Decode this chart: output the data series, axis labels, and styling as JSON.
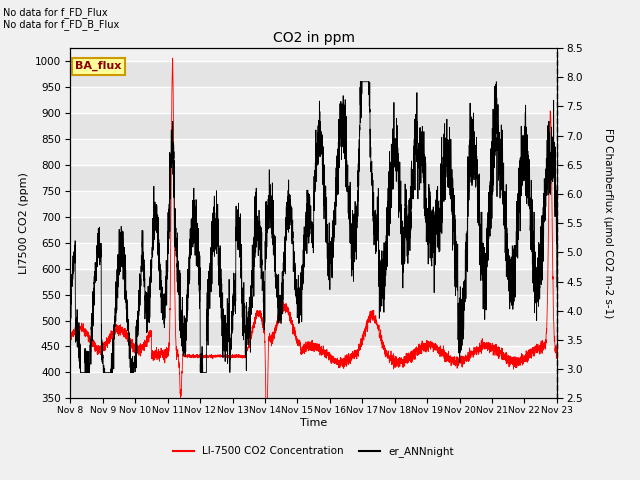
{
  "title": "CO2 in ppm",
  "xlabel": "Time",
  "ylabel_left": "LI7500 CO2 (ppm)",
  "ylabel_right": "FD Chamberflux (μmol CO2 m-2 s-1)",
  "text_no_data_1": "No data for f_FD_Flux",
  "text_no_data_2": "No data for f_FD_B_Flux",
  "ba_flux_label": "BA_flux",
  "legend_red": "LI-7500 CO2 Concentration",
  "legend_black": "er_ANNnight",
  "ylim_left": [
    350,
    1025
  ],
  "ylim_right": [
    2.5,
    8.5
  ],
  "yticks_left": [
    350,
    400,
    450,
    500,
    550,
    600,
    650,
    700,
    750,
    800,
    850,
    900,
    950,
    1000
  ],
  "yticks_right": [
    2.5,
    3.0,
    3.5,
    4.0,
    4.5,
    5.0,
    5.5,
    6.0,
    6.5,
    7.0,
    7.5,
    8.0,
    8.5
  ],
  "xtick_labels": [
    "Nov 8",
    "Nov 9",
    "Nov 10",
    "Nov 11",
    "Nov 12",
    "Nov 13",
    "Nov 14",
    "Nov 15",
    "Nov 16",
    "Nov 17",
    "Nov 18",
    "Nov 19",
    "Nov 20",
    "Nov 21",
    "Nov 22",
    "Nov 23"
  ],
  "plot_bg_color": "#f0f0f0",
  "fig_bg_color": "#f0f0f0",
  "grid_color": "#ffffff",
  "red_color": "#ff0000",
  "black_color": "#000000",
  "ba_flux_bg": "#ffff99",
  "ba_flux_border": "#cc9900",
  "ba_flux_text_color": "#8b0000"
}
